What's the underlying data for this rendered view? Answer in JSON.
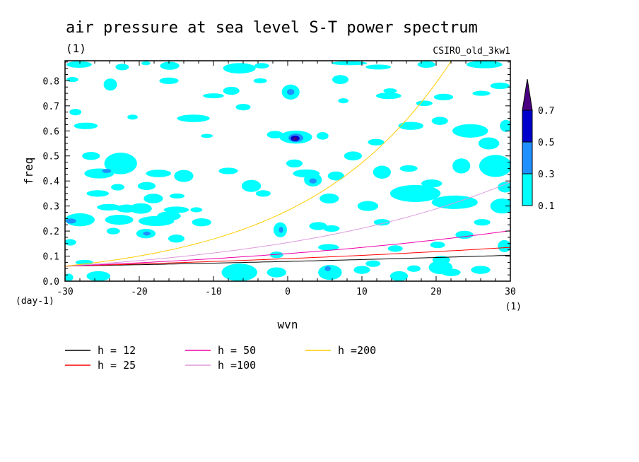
{
  "chart_data": {
    "type": "line",
    "title": "air pressure at sea level S-T power spectrum",
    "subtitle": "(1)",
    "model": "CSIRO_old_3kw1",
    "xlabel": "wvn",
    "ylabel": "freq",
    "x_unit": "(1)",
    "y_unit": "(day-1)",
    "xlim": [
      -30,
      30
    ],
    "ylim": [
      0,
      0.88
    ],
    "x_ticks": [
      "-30",
      "-20",
      "-10",
      "0",
      "10",
      "20",
      "30"
    ],
    "y_ticks": [
      "0.0",
      "0.1",
      "0.2",
      "0.3",
      "0.4",
      "0.5",
      "0.6",
      "0.7",
      "0.8"
    ],
    "colorbar": {
      "levels": [
        "0.1",
        "0.3",
        "0.5",
        "0.7"
      ],
      "colors": [
        "#00ffff",
        "#1e90ff",
        "#0000cd",
        "#4b0082"
      ]
    },
    "series": [
      {
        "name": "h = 12",
        "h": 12,
        "color": "#000000"
      },
      {
        "name": "h = 25",
        "h": 25,
        "color": "#ff0000"
      },
      {
        "name": "h = 50",
        "h": 50,
        "color": "#ee00aa"
      },
      {
        "name": "h =100",
        "h": 100,
        "color": "#dd99dd"
      },
      {
        "name": "h =200",
        "h": 200,
        "color": "#ffcc00"
      }
    ],
    "contour_blobs": [
      {
        "x": -29.0,
        "y": 0.805,
        "rx": 0.8,
        "ry": 0.01,
        "level": 0
      },
      {
        "x": -28.1,
        "y": 0.865,
        "rx": 1.7,
        "ry": 0.013,
        "level": 0
      },
      {
        "x": -22.3,
        "y": 0.855,
        "rx": 0.9,
        "ry": 0.013,
        "level": 0
      },
      {
        "x": -19.1,
        "y": 0.87,
        "rx": 0.6,
        "ry": 0.008,
        "level": 0
      },
      {
        "x": -15.9,
        "y": 0.86,
        "rx": 1.3,
        "ry": 0.016,
        "level": 0
      },
      {
        "x": -6.5,
        "y": 0.85,
        "rx": 2.2,
        "ry": 0.021,
        "level": 0
      },
      {
        "x": -3.5,
        "y": 0.86,
        "rx": 1.0,
        "ry": 0.011,
        "level": 0
      },
      {
        "x": 8.3,
        "y": 0.87,
        "rx": 2.4,
        "ry": 0.008,
        "level": 0
      },
      {
        "x": 12.2,
        "y": 0.855,
        "rx": 1.7,
        "ry": 0.01,
        "level": 0
      },
      {
        "x": 18.7,
        "y": 0.865,
        "rx": 1.2,
        "ry": 0.013,
        "level": 0
      },
      {
        "x": 26.5,
        "y": 0.865,
        "rx": 2.4,
        "ry": 0.015,
        "level": 0
      },
      {
        "x": -23.9,
        "y": 0.785,
        "rx": 0.9,
        "ry": 0.024,
        "level": 0
      },
      {
        "x": -16.0,
        "y": 0.8,
        "rx": 1.3,
        "ry": 0.013,
        "level": 0
      },
      {
        "x": -10.0,
        "y": 0.74,
        "rx": 1.4,
        "ry": 0.01,
        "level": 0
      },
      {
        "x": -7.6,
        "y": 0.76,
        "rx": 1.1,
        "ry": 0.016,
        "level": 0
      },
      {
        "x": -3.7,
        "y": 0.8,
        "rx": 0.9,
        "ry": 0.01,
        "level": 0
      },
      {
        "x": 0.4,
        "y": 0.755,
        "rx": 1.2,
        "ry": 0.03,
        "level": 0
      },
      {
        "x": 0.4,
        "y": 0.755,
        "rx": 0.5,
        "ry": 0.012,
        "level": 1
      },
      {
        "x": 7.1,
        "y": 0.805,
        "rx": 1.1,
        "ry": 0.018,
        "level": 0
      },
      {
        "x": 13.6,
        "y": 0.74,
        "rx": 1.7,
        "ry": 0.013,
        "level": 0
      },
      {
        "x": 13.8,
        "y": 0.76,
        "rx": 0.9,
        "ry": 0.01,
        "level": 0
      },
      {
        "x": 21.0,
        "y": 0.735,
        "rx": 1.3,
        "ry": 0.013,
        "level": 0
      },
      {
        "x": 26.1,
        "y": 0.75,
        "rx": 1.2,
        "ry": 0.01,
        "level": 0
      },
      {
        "x": 28.6,
        "y": 0.78,
        "rx": 1.3,
        "ry": 0.013,
        "level": 0
      },
      {
        "x": -28.6,
        "y": 0.675,
        "rx": 0.8,
        "ry": 0.013,
        "level": 0
      },
      {
        "x": -27.2,
        "y": 0.62,
        "rx": 1.6,
        "ry": 0.013,
        "level": 0
      },
      {
        "x": -20.9,
        "y": 0.655,
        "rx": 0.7,
        "ry": 0.01,
        "level": 0
      },
      {
        "x": -12.7,
        "y": 0.65,
        "rx": 2.2,
        "ry": 0.015,
        "level": 0
      },
      {
        "x": -6.0,
        "y": 0.695,
        "rx": 1.0,
        "ry": 0.013,
        "level": 0
      },
      {
        "x": 1.1,
        "y": 0.575,
        "rx": 2.2,
        "ry": 0.026,
        "level": 0
      },
      {
        "x": 1.1,
        "y": 0.572,
        "rx": 1.0,
        "ry": 0.017,
        "level": 1
      },
      {
        "x": 1.0,
        "y": 0.57,
        "rx": 0.6,
        "ry": 0.011,
        "level": 2
      },
      {
        "x": 1.0,
        "y": 0.569,
        "rx": 0.3,
        "ry": 0.006,
        "level": 3
      },
      {
        "x": -10.9,
        "y": 0.58,
        "rx": 0.8,
        "ry": 0.008,
        "level": 0
      },
      {
        "x": -1.7,
        "y": 0.585,
        "rx": 1.1,
        "ry": 0.015,
        "level": 0
      },
      {
        "x": 4.7,
        "y": 0.58,
        "rx": 0.8,
        "ry": 0.015,
        "level": 0
      },
      {
        "x": 11.9,
        "y": 0.555,
        "rx": 1.1,
        "ry": 0.013,
        "level": 0
      },
      {
        "x": 16.6,
        "y": 0.62,
        "rx": 1.7,
        "ry": 0.016,
        "level": 0
      },
      {
        "x": 20.5,
        "y": 0.64,
        "rx": 1.1,
        "ry": 0.016,
        "level": 0
      },
      {
        "x": 24.6,
        "y": 0.6,
        "rx": 2.4,
        "ry": 0.027,
        "level": 0
      },
      {
        "x": 27.1,
        "y": 0.55,
        "rx": 1.4,
        "ry": 0.024,
        "level": 0
      },
      {
        "x": 29.4,
        "y": 0.62,
        "rx": 0.8,
        "ry": 0.024,
        "level": 0
      },
      {
        "x": -26.5,
        "y": 0.5,
        "rx": 1.2,
        "ry": 0.016,
        "level": 0
      },
      {
        "x": -22.5,
        "y": 0.47,
        "rx": 2.2,
        "ry": 0.043,
        "level": 0
      },
      {
        "x": -25.4,
        "y": 0.43,
        "rx": 2.0,
        "ry": 0.02,
        "level": 0
      },
      {
        "x": -24.4,
        "y": 0.44,
        "rx": 0.6,
        "ry": 0.008,
        "level": 1
      },
      {
        "x": -17.4,
        "y": 0.43,
        "rx": 1.7,
        "ry": 0.015,
        "level": 0
      },
      {
        "x": -19.0,
        "y": 0.38,
        "rx": 1.2,
        "ry": 0.016,
        "level": 0
      },
      {
        "x": -22.9,
        "y": 0.375,
        "rx": 0.9,
        "ry": 0.013,
        "level": 0
      },
      {
        "x": -25.6,
        "y": 0.35,
        "rx": 1.5,
        "ry": 0.013,
        "level": 0
      },
      {
        "x": -18.1,
        "y": 0.33,
        "rx": 1.3,
        "ry": 0.019,
        "level": 0
      },
      {
        "x": -14.9,
        "y": 0.34,
        "rx": 1.0,
        "ry": 0.01,
        "level": 0
      },
      {
        "x": -14.0,
        "y": 0.42,
        "rx": 1.3,
        "ry": 0.024,
        "level": 0
      },
      {
        "x": -8.0,
        "y": 0.44,
        "rx": 1.3,
        "ry": 0.013,
        "level": 0
      },
      {
        "x": -4.9,
        "y": 0.38,
        "rx": 1.3,
        "ry": 0.024,
        "level": 0
      },
      {
        "x": -3.3,
        "y": 0.35,
        "rx": 1.0,
        "ry": 0.013,
        "level": 0
      },
      {
        "x": 0.9,
        "y": 0.47,
        "rx": 1.1,
        "ry": 0.016,
        "level": 0
      },
      {
        "x": 2.5,
        "y": 0.43,
        "rx": 1.8,
        "ry": 0.016,
        "level": 0
      },
      {
        "x": 3.4,
        "y": 0.405,
        "rx": 1.2,
        "ry": 0.027,
        "level": 0
      },
      {
        "x": 3.4,
        "y": 0.4,
        "rx": 0.5,
        "ry": 0.01,
        "level": 1
      },
      {
        "x": 6.5,
        "y": 0.42,
        "rx": 1.1,
        "ry": 0.018,
        "level": 0
      },
      {
        "x": 8.8,
        "y": 0.5,
        "rx": 1.2,
        "ry": 0.018,
        "level": 0
      },
      {
        "x": 12.7,
        "y": 0.435,
        "rx": 1.2,
        "ry": 0.026,
        "level": 0
      },
      {
        "x": 16.3,
        "y": 0.45,
        "rx": 1.2,
        "ry": 0.013,
        "level": 0
      },
      {
        "x": 19.4,
        "y": 0.39,
        "rx": 1.4,
        "ry": 0.016,
        "level": 0
      },
      {
        "x": 23.4,
        "y": 0.46,
        "rx": 1.2,
        "ry": 0.03,
        "level": 0
      },
      {
        "x": 28.0,
        "y": 0.46,
        "rx": 2.2,
        "ry": 0.044,
        "level": 0
      },
      {
        "x": 29.3,
        "y": 0.375,
        "rx": 1.0,
        "ry": 0.021,
        "level": 0
      },
      {
        "x": 17.2,
        "y": 0.35,
        "rx": 3.4,
        "ry": 0.034,
        "level": 0
      },
      {
        "x": 22.5,
        "y": 0.315,
        "rx": 3.1,
        "ry": 0.027,
        "level": 0
      },
      {
        "x": 28.9,
        "y": 0.3,
        "rx": 1.6,
        "ry": 0.03,
        "level": 0
      },
      {
        "x": 5.6,
        "y": 0.33,
        "rx": 1.3,
        "ry": 0.02,
        "level": 0
      },
      {
        "x": 10.8,
        "y": 0.3,
        "rx": 1.4,
        "ry": 0.02,
        "level": 0
      },
      {
        "x": -24.1,
        "y": 0.295,
        "rx": 1.6,
        "ry": 0.013,
        "level": 0
      },
      {
        "x": -21.7,
        "y": 0.29,
        "rx": 1.4,
        "ry": 0.016,
        "level": 0
      },
      {
        "x": -19.8,
        "y": 0.29,
        "rx": 1.5,
        "ry": 0.021,
        "level": 0
      },
      {
        "x": -15.0,
        "y": 0.285,
        "rx": 1.7,
        "ry": 0.013,
        "level": 0
      },
      {
        "x": -12.3,
        "y": 0.285,
        "rx": 0.8,
        "ry": 0.01,
        "level": 0
      },
      {
        "x": -28.0,
        "y": 0.245,
        "rx": 2.0,
        "ry": 0.026,
        "level": 0
      },
      {
        "x": -29.2,
        "y": 0.24,
        "rx": 0.7,
        "ry": 0.01,
        "level": 1
      },
      {
        "x": -22.7,
        "y": 0.245,
        "rx": 1.9,
        "ry": 0.02,
        "level": 0
      },
      {
        "x": -17.7,
        "y": 0.24,
        "rx": 2.4,
        "ry": 0.02,
        "level": 0
      },
      {
        "x": -16.0,
        "y": 0.26,
        "rx": 1.6,
        "ry": 0.018,
        "level": 0
      },
      {
        "x": -11.6,
        "y": 0.235,
        "rx": 1.3,
        "ry": 0.016,
        "level": 0
      },
      {
        "x": -23.5,
        "y": 0.2,
        "rx": 0.9,
        "ry": 0.013,
        "level": 0
      },
      {
        "x": -19.1,
        "y": 0.19,
        "rx": 1.3,
        "ry": 0.019,
        "level": 0
      },
      {
        "x": -19.0,
        "y": 0.19,
        "rx": 0.5,
        "ry": 0.008,
        "level": 1
      },
      {
        "x": -15.0,
        "y": 0.17,
        "rx": 1.1,
        "ry": 0.016,
        "level": 0
      },
      {
        "x": -29.3,
        "y": 0.155,
        "rx": 0.8,
        "ry": 0.013,
        "level": 0
      },
      {
        "x": -1.0,
        "y": 0.205,
        "rx": 0.9,
        "ry": 0.03,
        "level": 0
      },
      {
        "x": -0.9,
        "y": 0.205,
        "rx": 0.3,
        "ry": 0.012,
        "level": 1
      },
      {
        "x": 4.1,
        "y": 0.22,
        "rx": 1.2,
        "ry": 0.016,
        "level": 0
      },
      {
        "x": 5.9,
        "y": 0.21,
        "rx": 1.1,
        "ry": 0.013,
        "level": 0
      },
      {
        "x": 12.7,
        "y": 0.235,
        "rx": 1.1,
        "ry": 0.013,
        "level": 0
      },
      {
        "x": 26.2,
        "y": 0.235,
        "rx": 1.1,
        "ry": 0.013,
        "level": 0
      },
      {
        "x": 23.8,
        "y": 0.185,
        "rx": 1.2,
        "ry": 0.016,
        "level": 0
      },
      {
        "x": 29.2,
        "y": 0.14,
        "rx": 0.9,
        "ry": 0.024,
        "level": 0
      },
      {
        "x": 20.2,
        "y": 0.145,
        "rx": 1.0,
        "ry": 0.013,
        "level": 0
      },
      {
        "x": 14.5,
        "y": 0.13,
        "rx": 1.0,
        "ry": 0.013,
        "level": 0
      },
      {
        "x": 5.5,
        "y": 0.135,
        "rx": 1.4,
        "ry": 0.013,
        "level": 0
      },
      {
        "x": -1.5,
        "y": 0.105,
        "rx": 0.9,
        "ry": 0.013,
        "level": 0
      },
      {
        "x": -27.4,
        "y": 0.075,
        "rx": 1.2,
        "ry": 0.01,
        "level": 0
      },
      {
        "x": -25.5,
        "y": 0.02,
        "rx": 1.6,
        "ry": 0.02,
        "level": 0
      },
      {
        "x": -29.5,
        "y": 0.015,
        "rx": 0.6,
        "ry": 0.015,
        "level": 0
      },
      {
        "x": 11.5,
        "y": 0.07,
        "rx": 1.0,
        "ry": 0.013,
        "level": 0
      },
      {
        "x": 20.7,
        "y": 0.085,
        "rx": 1.2,
        "ry": 0.016,
        "level": 0
      },
      {
        "x": -6.5,
        "y": 0.035,
        "rx": 2.4,
        "ry": 0.035,
        "level": 0
      },
      {
        "x": -1.5,
        "y": 0.035,
        "rx": 1.3,
        "ry": 0.02,
        "level": 0
      },
      {
        "x": 5.7,
        "y": 0.035,
        "rx": 1.6,
        "ry": 0.03,
        "level": 0
      },
      {
        "x": 5.4,
        "y": 0.05,
        "rx": 0.4,
        "ry": 0.01,
        "level": 1
      },
      {
        "x": 10.0,
        "y": 0.045,
        "rx": 1.1,
        "ry": 0.016,
        "level": 0
      },
      {
        "x": 15.0,
        "y": 0.02,
        "rx": 1.2,
        "ry": 0.02,
        "level": 0
      },
      {
        "x": 17.0,
        "y": 0.05,
        "rx": 0.9,
        "ry": 0.013,
        "level": 0
      },
      {
        "x": 20.6,
        "y": 0.055,
        "rx": 1.6,
        "ry": 0.027,
        "level": 0
      },
      {
        "x": 22.0,
        "y": 0.035,
        "rx": 1.3,
        "ry": 0.015,
        "level": 0
      },
      {
        "x": 26.0,
        "y": 0.045,
        "rx": 1.3,
        "ry": 0.016,
        "level": 0
      },
      {
        "x": 7.5,
        "y": 0.72,
        "rx": 0.7,
        "ry": 0.01,
        "level": 0
      },
      {
        "x": 18.4,
        "y": 0.71,
        "rx": 1.1,
        "ry": 0.011,
        "level": 0
      }
    ]
  }
}
